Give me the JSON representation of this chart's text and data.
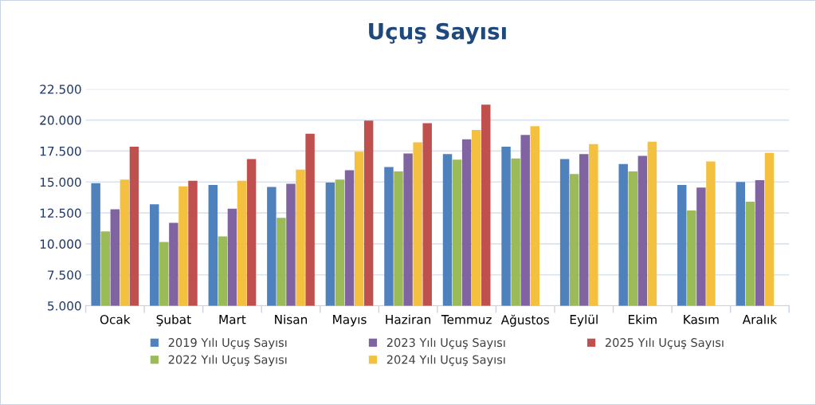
{
  "chart_data": {
    "type": "bar",
    "title": "Uçuş Sayısı",
    "categories": [
      "Ocak",
      "Şubat",
      "Mart",
      "Nisan",
      "Mayıs",
      "Haziran",
      "Temmuz",
      "Ağustos",
      "Eylül",
      "Ekim",
      "Kasım",
      "Aralık"
    ],
    "series": [
      {
        "name": "2019 Yılı Uçuş Sayısı",
        "color": "#4f81bd",
        "values": [
          14900,
          13200,
          14750,
          14600,
          14950,
          16200,
          17250,
          17850,
          16850,
          16450,
          14750,
          15000
        ]
      },
      {
        "name": "2022 Yılı Uçuş Sayısı",
        "color": "#9bbb59",
        "values": [
          11000,
          10150,
          10600,
          12100,
          15200,
          15850,
          16800,
          16900,
          15650,
          15850,
          12700,
          13400
        ]
      },
      {
        "name": "2023 Yılı Uçuş Sayısı",
        "color": "#8064a2",
        "values": [
          12800,
          11700,
          12850,
          14850,
          15950,
          17300,
          18450,
          18800,
          17250,
          17100,
          14550,
          15150
        ]
      },
      {
        "name": "2024 Yılı Uçuş Sayısı",
        "color": "#f4c03f",
        "values": [
          15200,
          14650,
          15100,
          16000,
          17450,
          18200,
          19200,
          19500,
          18050,
          18250,
          16650,
          17350
        ]
      },
      {
        "name": "2025 Yılı Uçuş Sayısı",
        "color": "#c0504d",
        "values": [
          17850,
          15100,
          16850,
          18900,
          19950,
          19750,
          21250,
          null,
          null,
          null,
          null,
          null
        ]
      }
    ],
    "ylim": [
      5000,
      22500
    ],
    "yticks": [
      {
        "value": 5000,
        "label": "5.000"
      },
      {
        "value": 7500,
        "label": "7.500"
      },
      {
        "value": 10000,
        "label": "10.000"
      },
      {
        "value": 12500,
        "label": "12.500"
      },
      {
        "value": 15000,
        "label": "15.000"
      },
      {
        "value": 17500,
        "label": "17.500"
      },
      {
        "value": 20000,
        "label": "20.000"
      },
      {
        "value": 22500,
        "label": "22.500"
      }
    ],
    "grid": "y",
    "legend": "bottom"
  }
}
